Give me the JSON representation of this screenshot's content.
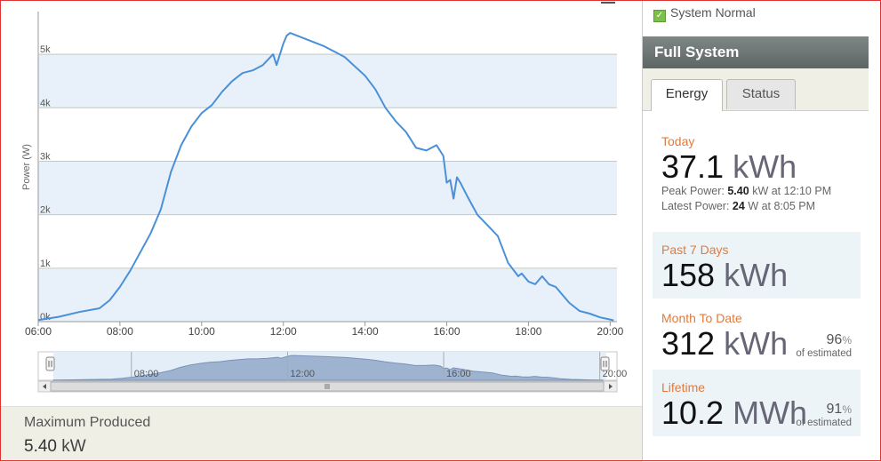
{
  "chart": {
    "y_ticks": [
      "0k",
      "1k",
      "2k",
      "3k",
      "4k",
      "5k"
    ],
    "y_label": "Power (W)",
    "x_ticks": [
      "06:00",
      "08:00",
      "10:00",
      "12:00",
      "14:00",
      "16:00",
      "18:00",
      "20:00"
    ],
    "nav_ticks": [
      "08:00",
      "12:00",
      "16:00",
      "20:00"
    ],
    "colors": {
      "line": "#4a90d9",
      "band": "#e8f1f9",
      "nav_fill": "#9db3d0"
    }
  },
  "chart_data": {
    "type": "line",
    "ylabel": "Power (W)",
    "ylim": [
      0,
      5800
    ],
    "xlim": [
      "06:00",
      "20:10"
    ],
    "grid": true,
    "series": [
      {
        "x": [
          "06:00",
          "06:30",
          "07:00",
          "07:30",
          "07:45",
          "08:00",
          "08:15",
          "08:30",
          "08:45",
          "09:00",
          "09:15",
          "09:30",
          "09:45",
          "10:00",
          "10:15",
          "10:30",
          "10:45",
          "11:00",
          "11:15",
          "11:30",
          "11:45",
          "11:50",
          "12:00",
          "12:05",
          "12:10",
          "12:30",
          "13:00",
          "13:30",
          "14:00",
          "14:15",
          "14:30",
          "14:45",
          "15:00",
          "15:15",
          "15:30",
          "15:45",
          "15:55",
          "16:00",
          "16:05",
          "16:10",
          "16:15",
          "16:20",
          "16:30",
          "16:45",
          "17:00",
          "17:15",
          "17:30",
          "17:45",
          "17:50",
          "18:00",
          "18:10",
          "18:20",
          "18:30",
          "18:40",
          "18:50",
          "19:00",
          "19:15",
          "19:30",
          "19:45",
          "20:00",
          "20:05"
        ],
        "values": [
          30,
          90,
          180,
          250,
          400,
          650,
          950,
          1300,
          1650,
          2100,
          2800,
          3300,
          3650,
          3900,
          4050,
          4300,
          4500,
          4650,
          4700,
          4800,
          5000,
          4800,
          5200,
          5350,
          5400,
          5300,
          5150,
          4950,
          4600,
          4350,
          4000,
          3750,
          3550,
          3250,
          3200,
          3300,
          3100,
          2600,
          2650,
          2300,
          2700,
          2600,
          2350,
          2000,
          1800,
          1600,
          1100,
          850,
          900,
          750,
          700,
          850,
          700,
          650,
          500,
          350,
          200,
          150,
          80,
          40,
          24
        ]
      }
    ]
  },
  "stats_bottom": {
    "label": "Maximum Produced",
    "value": "5.40",
    "unit": "kW"
  },
  "panel": {
    "status_text": "System Normal",
    "header": "Full System",
    "tabs": [
      {
        "label": "Energy"
      },
      {
        "label": "Status"
      }
    ],
    "today": {
      "title": "Today",
      "value": "37.1",
      "unit": "kWh",
      "peak_label": "Peak Power:",
      "peak_value": "5.40",
      "peak_unit": "kW at 12:10 PM",
      "latest_label": "Latest Power:",
      "latest_value": "24",
      "latest_unit": "W at 8:05 PM"
    },
    "week": {
      "title": "Past 7 Days",
      "value": "158",
      "unit": "kWh"
    },
    "month": {
      "title": "Month To Date",
      "value": "312",
      "unit": "kWh",
      "pct": "96",
      "pct_sign": "%",
      "pct_label": "of estimated"
    },
    "lifetime": {
      "title": "Lifetime",
      "value": "10.2",
      "unit": "MWh",
      "pct": "91",
      "pct_sign": "%",
      "pct_label": "of estimated"
    }
  }
}
